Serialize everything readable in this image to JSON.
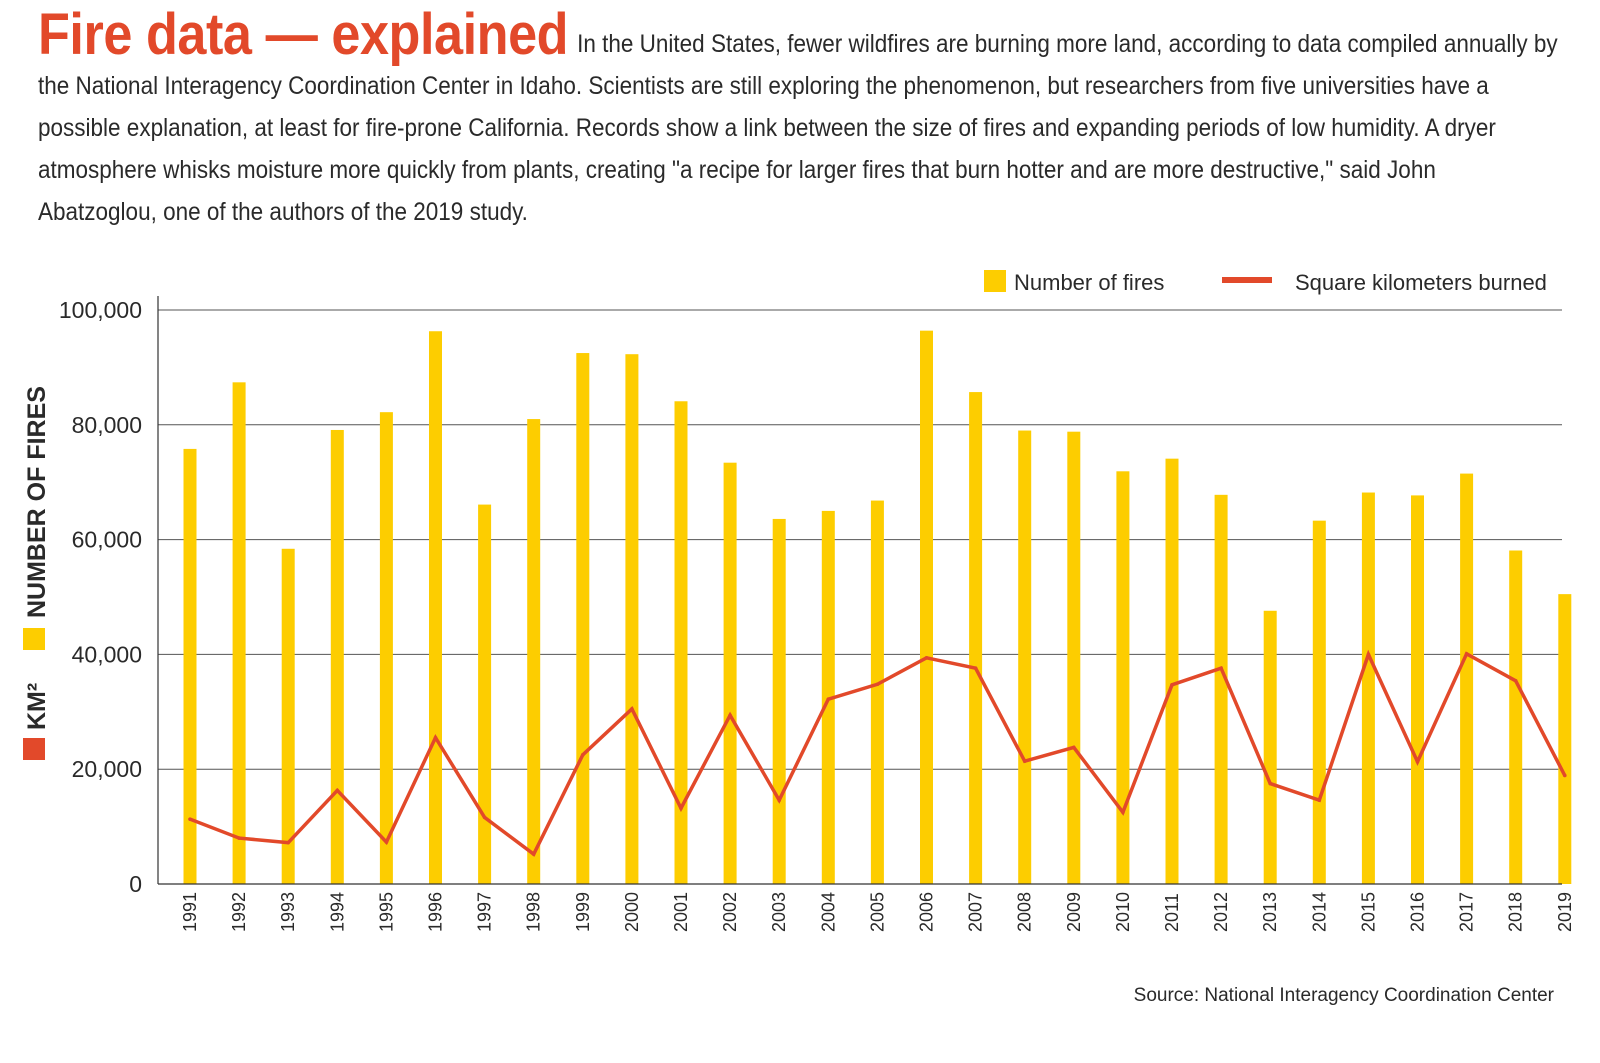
{
  "header": {
    "title": "Fire data — explained",
    "intro": "In the United States, fewer wildfires are burning more land, according to data compiled annually by the National Interagency Coordination Center in Idaho. Scientists are still exploring the phenomenon, but researchers from five universities have a possible explanation, at least for fire-prone California. Records show a link between the size of fires and expanding periods of low humidity. A dryer atmosphere whisks moisture more quickly from plants, creating \"a recipe for larger fires that burn hotter and are more destructive,\" said John Abatzoglou, one of the authors of the 2019 study."
  },
  "colors": {
    "title": "#e2492a",
    "bars": "#fdcd00",
    "line": "#e2492a",
    "grid": "#555555"
  },
  "source": "Source: National Interagency Coordination Center",
  "chart_data": {
    "type": "bar",
    "categories": [
      "1991",
      "1992",
      "1993",
      "1994",
      "1995",
      "1996",
      "1997",
      "1998",
      "1999",
      "2000",
      "2001",
      "2002",
      "2003",
      "2004",
      "2005",
      "2006",
      "2007",
      "2008",
      "2009",
      "2010",
      "2011",
      "2012",
      "2013",
      "2014",
      "2015",
      "2016",
      "2017",
      "2018",
      "2019"
    ],
    "series": [
      {
        "name": "Number of fires",
        "type": "bar",
        "color": "#fdcd00",
        "values": [
          75800,
          87400,
          58400,
          79100,
          82200,
          96300,
          66100,
          81000,
          92500,
          92300,
          84100,
          73400,
          63600,
          65000,
          66800,
          96400,
          85700,
          79000,
          78800,
          71900,
          74100,
          67800,
          47600,
          63300,
          68200,
          67700,
          71500,
          58100,
          50500
        ]
      },
      {
        "name": "Square kilometers burned",
        "type": "line",
        "color": "#e2492a",
        "values": [
          11300,
          8000,
          7200,
          16300,
          7300,
          25500,
          11600,
          5200,
          22500,
          30500,
          13200,
          29400,
          14600,
          32200,
          34800,
          39400,
          37600,
          21400,
          23800,
          12500,
          34700,
          37600,
          17500,
          14600,
          40000,
          21300,
          40100,
          35400,
          18900
        ]
      }
    ],
    "ylabel_parts": [
      "KM²",
      "NUMBER OF FIRES"
    ],
    "yticks": [
      "0",
      "20,000",
      "40,000",
      "60,000",
      "80,000",
      "100,000"
    ],
    "ylim": [
      0,
      100000
    ],
    "grid": true,
    "legend_position": "top-right"
  }
}
